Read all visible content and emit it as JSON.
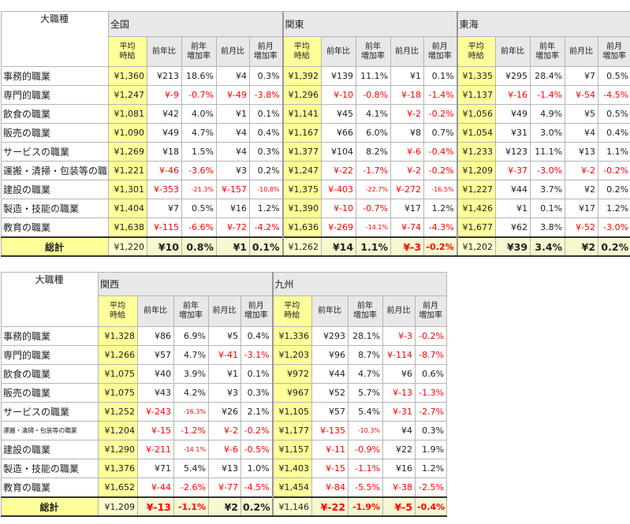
{
  "corner_label": "大職種",
  "subheaders": [
    "平均\n時給",
    "前年比",
    "前年\n増加率",
    "前月比",
    "前月\n増加率"
  ],
  "categories": [
    "事務的職業",
    "専門的職業",
    "飲食の職業",
    "販売の職業",
    "サービスの職業",
    "運搬・清掃・包装等の職業",
    "建設の職業",
    "製造・技能の職業",
    "教育の職業"
  ],
  "total_label": "総計",
  "table1": {
    "regions": [
      "全国",
      "関東",
      "東海"
    ],
    "rows": [
      [
        [
          "¥1,360",
          "¥213",
          "18.6%",
          "¥4",
          "0.3%"
        ],
        [
          "¥1,392",
          "¥139",
          "11.1%",
          "¥1",
          "0.1%"
        ],
        [
          "¥1,335",
          "¥295",
          "28.4%",
          "¥7",
          "0.5%"
        ]
      ],
      [
        [
          "¥1,247",
          "¥-9",
          "-0.7%",
          "¥-49",
          "-3.8%"
        ],
        [
          "¥1,296",
          "¥-10",
          "-0.8%",
          "¥-18",
          "-1.4%"
        ],
        [
          "¥1,137",
          "¥-16",
          "-1.4%",
          "¥-54",
          "-4.5%"
        ]
      ],
      [
        [
          "¥1,081",
          "¥42",
          "4.0%",
          "¥1",
          "0.1%"
        ],
        [
          "¥1,141",
          "¥45",
          "4.1%",
          "¥-2",
          "-0.2%"
        ],
        [
          "¥1,056",
          "¥49",
          "4.9%",
          "¥5",
          "0.5%"
        ]
      ],
      [
        [
          "¥1,090",
          "¥49",
          "4.7%",
          "¥4",
          "0.4%"
        ],
        [
          "¥1,167",
          "¥66",
          "6.0%",
          "¥8",
          "0.7%"
        ],
        [
          "¥1,054",
          "¥31",
          "3.0%",
          "¥4",
          "0.4%"
        ]
      ],
      [
        [
          "¥1,269",
          "¥18",
          "1.5%",
          "¥4",
          "0.3%"
        ],
        [
          "¥1,377",
          "¥104",
          "8.2%",
          "¥-6",
          "-0.4%"
        ],
        [
          "¥1,233",
          "¥123",
          "11.1%",
          "¥13",
          "1.1%"
        ]
      ],
      [
        [
          "¥1,221",
          "¥-46",
          "-3.6%",
          "¥3",
          "0.2%"
        ],
        [
          "¥1,247",
          "¥-22",
          "-1.7%",
          "¥-2",
          "-0.2%"
        ],
        [
          "¥1,209",
          "¥-37",
          "-3.0%",
          "¥-2",
          "-0.2%"
        ]
      ],
      [
        [
          "¥1,301",
          "¥-353",
          "-21.3%",
          "¥-157",
          "-10.8%"
        ],
        [
          "¥1,375",
          "¥-403",
          "-22.7%",
          "¥-272",
          "-16.5%"
        ],
        [
          "¥1,227",
          "¥44",
          "3.7%",
          "¥2",
          "0.2%"
        ]
      ],
      [
        [
          "¥1,404",
          "¥7",
          "0.5%",
          "¥16",
          "1.2%"
        ],
        [
          "¥1,390",
          "¥-10",
          "-0.7%",
          "¥17",
          "1.2%"
        ],
        [
          "¥1,426",
          "¥1",
          "0.1%",
          "¥17",
          "1.2%"
        ]
      ],
      [
        [
          "¥1,638",
          "¥-115",
          "-6.6%",
          "¥-72",
          "-4.2%"
        ],
        [
          "¥1,636",
          "¥-269",
          "-14.1%",
          "¥-74",
          "-4.3%"
        ],
        [
          "¥1,677",
          "¥62",
          "3.8%",
          "¥-52",
          "-3.0%"
        ]
      ]
    ],
    "total": [
      [
        "¥1,220",
        "¥10",
        "0.8%",
        "¥1",
        "0.1%"
      ],
      [
        "¥1,262",
        "¥14",
        "1.1%",
        "¥-3",
        "-0.2%"
      ],
      [
        "¥1,202",
        "¥39",
        "3.4%",
        "¥2",
        "0.2%"
      ]
    ]
  },
  "table2": {
    "regions": [
      "関西",
      "九州"
    ],
    "rows": [
      [
        [
          "¥1,328",
          "¥86",
          "6.9%",
          "¥5",
          "0.4%"
        ],
        [
          "¥1,336",
          "¥293",
          "28.1%",
          "¥-3",
          "-0.2%"
        ]
      ],
      [
        [
          "¥1,266",
          "¥57",
          "4.7%",
          "¥-41",
          "-3.1%"
        ],
        [
          "¥1,203",
          "¥96",
          "8.7%",
          "¥-114",
          "-8.7%"
        ]
      ],
      [
        [
          "¥1,075",
          "¥40",
          "3.9%",
          "¥1",
          "0.1%"
        ],
        [
          "¥972",
          "¥44",
          "4.7%",
          "¥6",
          "0.6%"
        ]
      ],
      [
        [
          "¥1,075",
          "¥43",
          "4.2%",
          "¥3",
          "0.3%"
        ],
        [
          "¥967",
          "¥52",
          "5.7%",
          "¥-13",
          "-1.3%"
        ]
      ],
      [
        [
          "¥1,252",
          "¥-243",
          "-16.3%",
          "¥26",
          "2.1%"
        ],
        [
          "¥1,105",
          "¥57",
          "5.4%",
          "¥-31",
          "-2.7%"
        ]
      ],
      [
        [
          "¥1,204",
          "¥-15",
          "-1.2%",
          "¥-2",
          "-0.2%"
        ],
        [
          "¥1,177",
          "¥-135",
          "-10.3%",
          "¥4",
          "0.3%"
        ]
      ],
      [
        [
          "¥1,290",
          "¥-211",
          "-14.1%",
          "¥-6",
          "-0.5%"
        ],
        [
          "¥1,157",
          "¥-11",
          "-0.9%",
          "¥22",
          "1.9%"
        ]
      ],
      [
        [
          "¥1,376",
          "¥71",
          "5.4%",
          "¥13",
          "1.0%"
        ],
        [
          "¥1,403",
          "¥-15",
          "-1.1%",
          "¥16",
          "1.2%"
        ]
      ],
      [
        [
          "¥1,652",
          "¥-44",
          "-2.6%",
          "¥-77",
          "-4.5%"
        ],
        [
          "¥1,454",
          "¥-84",
          "-5.5%",
          "¥-38",
          "-2.5%"
        ]
      ]
    ],
    "total": [
      [
        "¥1,209",
        "¥-13",
        "-1.1%",
        "¥2",
        "0.2%"
      ],
      [
        "¥1,146",
        "¥-22",
        "-1.9%",
        "¥-5",
        "-0.4%"
      ]
    ]
  },
  "colors": {
    "highlight": "#ffff99",
    "negative": "#ff0000",
    "header_bg": "#e8e8e8"
  }
}
